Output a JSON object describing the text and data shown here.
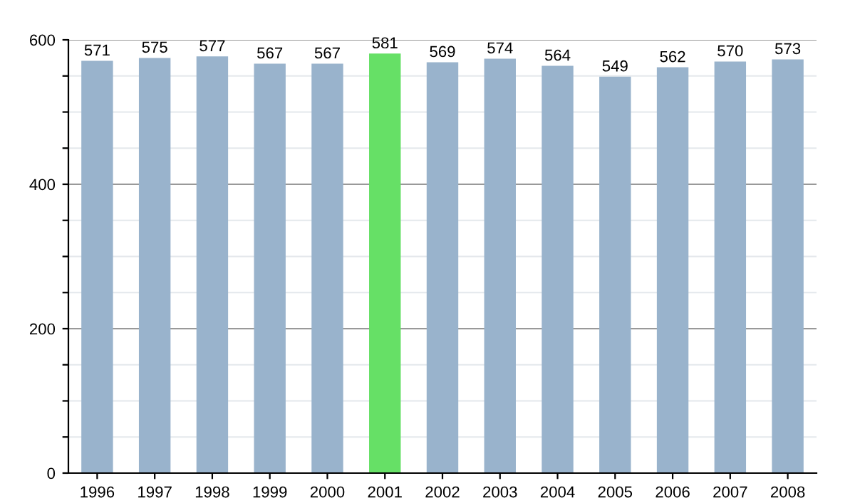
{
  "chart_data": {
    "type": "bar",
    "categories": [
      "1996",
      "1997",
      "1998",
      "1999",
      "2000",
      "2001",
      "2002",
      "2003",
      "2004",
      "2005",
      "2006",
      "2007",
      "2008"
    ],
    "values": [
      571,
      575,
      577,
      567,
      567,
      581,
      569,
      574,
      564,
      549,
      562,
      570,
      573
    ],
    "colors": [
      "#99b3cc",
      "#99b3cc",
      "#99b3cc",
      "#99b3cc",
      "#99b3cc",
      "#66e066",
      "#99b3cc",
      "#99b3cc",
      "#99b3cc",
      "#99b3cc",
      "#99b3cc",
      "#99b3cc",
      "#99b3cc"
    ],
    "ylim": [
      0,
      600
    ],
    "yticks": [
      0,
      {
        "value": 50,
        "label": null
      },
      {
        "value": 100,
        "label": null
      },
      {
        "value": 150,
        "label": null
      },
      200,
      {
        "value": 250,
        "label": null
      },
      {
        "value": 300,
        "label": null
      },
      {
        "value": 350,
        "label": null
      },
      400,
      {
        "value": 450,
        "label": null
      },
      {
        "value": 500,
        "label": null
      },
      {
        "value": 550,
        "label": null
      },
      600
    ],
    "grid": "y",
    "data_labels": true,
    "legend": false
  }
}
